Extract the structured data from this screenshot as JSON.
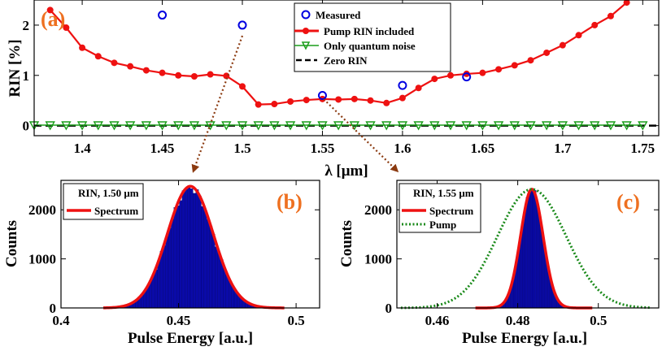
{
  "colors": {
    "measured": "#0000e0",
    "pump_rin": "#ee1111",
    "quantum": "#1a9e1a",
    "zero": "#000000",
    "arrow": "#8b3a10",
    "panel_label": "#ee7020",
    "hist_fill": "#0a0aa8",
    "pump_dotted": "#1a8a1a"
  },
  "chart_data": [
    {
      "type": "line",
      "panel_label": "(a)",
      "xlabel": "λ [μm]",
      "ylabel": "RIN [%]",
      "xlim": [
        1.37,
        1.76
      ],
      "ylim": [
        -0.2,
        2.5
      ],
      "xticks": [
        1.4,
        1.45,
        1.5,
        1.55,
        1.6,
        1.65,
        1.7,
        1.75
      ],
      "xtick_labels": [
        "1.4",
        "1.45",
        "1.5",
        "1.55",
        "1.6",
        "1.65",
        "1.7",
        "1.75"
      ],
      "yticks": [
        0,
        1,
        2
      ],
      "ytick_labels": [
        "0",
        "1",
        "2"
      ],
      "legend": [
        "Measured",
        "Pump RIN included",
        "Only quantum noise",
        "Zero RIN"
      ],
      "legend_position": "top-center",
      "series": [
        {
          "name": "Measured",
          "style": "circles",
          "x": [
            1.45,
            1.5,
            1.55,
            1.6,
            1.64
          ],
          "y": [
            2.2,
            2.0,
            0.6,
            0.8,
            0.97
          ]
        },
        {
          "name": "Pump RIN included",
          "style": "line-dots",
          "x": [
            1.38,
            1.39,
            1.4,
            1.41,
            1.42,
            1.43,
            1.44,
            1.45,
            1.46,
            1.47,
            1.48,
            1.49,
            1.5,
            1.51,
            1.52,
            1.53,
            1.54,
            1.55,
            1.56,
            1.57,
            1.58,
            1.59,
            1.6,
            1.61,
            1.62,
            1.63,
            1.64,
            1.65,
            1.66,
            1.67,
            1.68,
            1.69,
            1.7,
            1.71,
            1.72,
            1.73,
            1.74
          ],
          "y": [
            2.3,
            1.95,
            1.55,
            1.38,
            1.25,
            1.18,
            1.1,
            1.05,
            1.0,
            0.98,
            1.02,
            0.99,
            0.78,
            0.42,
            0.43,
            0.48,
            0.51,
            0.53,
            0.52,
            0.53,
            0.5,
            0.45,
            0.55,
            0.75,
            0.93,
            1.0,
            1.03,
            1.05,
            1.12,
            1.2,
            1.3,
            1.45,
            1.6,
            1.8,
            2.0,
            2.18,
            2.45
          ]
        },
        {
          "name": "Only quantum noise",
          "style": "line-triangles",
          "x": [
            1.37,
            1.38,
            1.39,
            1.4,
            1.41,
            1.42,
            1.43,
            1.44,
            1.45,
            1.46,
            1.47,
            1.48,
            1.49,
            1.5,
            1.51,
            1.52,
            1.53,
            1.54,
            1.55,
            1.56,
            1.57,
            1.58,
            1.59,
            1.6,
            1.61,
            1.62,
            1.63,
            1.64,
            1.65,
            1.66,
            1.67,
            1.68,
            1.69,
            1.7,
            1.71,
            1.72,
            1.73,
            1.74,
            1.75
          ],
          "y": [
            0.01,
            0.01,
            0.01,
            0.01,
            0.01,
            0.01,
            0.01,
            0.01,
            0.01,
            0.01,
            0.01,
            0.01,
            0.01,
            0.01,
            0.01,
            0.01,
            0.01,
            0.01,
            0.01,
            0.01,
            0.01,
            0.01,
            0.01,
            0.01,
            0.01,
            0.01,
            0.01,
            0.01,
            0.01,
            0.01,
            0.01,
            0.01,
            0.01,
            0.01,
            0.01,
            0.01,
            0.01,
            0.01,
            0.01
          ]
        },
        {
          "name": "Zero RIN",
          "style": "dashed",
          "x": [
            1.37,
            1.76
          ],
          "y": [
            0,
            0
          ]
        }
      ]
    },
    {
      "type": "histogram",
      "panel_label": "(b)",
      "xlabel": "Pulse Energy [a.u.]",
      "ylabel": "Counts",
      "xlim": [
        0.4,
        0.51
      ],
      "ylim": [
        0,
        2600
      ],
      "xticks": [
        0.4,
        0.45,
        0.5
      ],
      "xtick_labels": [
        "0.4",
        "0.45",
        "0.5"
      ],
      "yticks": [
        0,
        1000,
        2000
      ],
      "ytick_labels": [
        "0",
        "1000",
        "2000"
      ],
      "legend_title": "RIN, 1.50 μm",
      "legend": [
        "Spectrum"
      ],
      "legend_position": "top-left",
      "histogram": {
        "mean": 0.455,
        "sigma": 0.0098,
        "peak_count": 2450,
        "bins": 60,
        "range": [
          0.42,
          0.49
        ]
      },
      "series": [
        {
          "name": "Spectrum",
          "type": "gaussian",
          "mean": 0.455,
          "sigma": 0.0098,
          "amplitude": 2480,
          "range": [
            0.418,
            0.495
          ]
        }
      ]
    },
    {
      "type": "histogram",
      "panel_label": "(c)",
      "xlabel": "Pulse Energy [a.u.]",
      "ylabel": "Counts",
      "xlim": [
        0.45,
        0.515
      ],
      "ylim": [
        0,
        2600
      ],
      "xticks": [
        0.46,
        0.48,
        0.5
      ],
      "xtick_labels": [
        "0.46",
        "0.48",
        "0.5"
      ],
      "yticks": [
        0,
        1000,
        2000
      ],
      "ytick_labels": [
        "0",
        "1000",
        "2000"
      ],
      "legend_title": "RIN, 1.55 μm",
      "legend": [
        "Spectrum",
        "Pump"
      ],
      "legend_position": "top-left",
      "histogram": {
        "mean": 0.4835,
        "sigma": 0.0028,
        "peak_count": 2420,
        "bins": 45,
        "range": [
          0.474,
          0.493
        ]
      },
      "series": [
        {
          "name": "Spectrum",
          "type": "gaussian",
          "mean": 0.4835,
          "sigma": 0.0028,
          "amplitude": 2420,
          "range": [
            0.4695,
            0.4985
          ]
        },
        {
          "name": "Pump",
          "type": "gaussian",
          "mean": 0.4835,
          "sigma": 0.0085,
          "amplitude": 2420,
          "range": [
            0.451,
            0.513
          ]
        }
      ]
    }
  ]
}
